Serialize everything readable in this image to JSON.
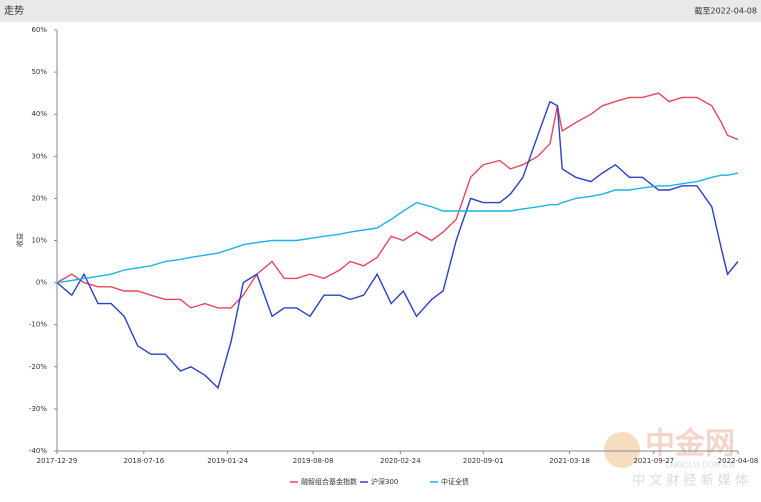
{
  "header": {
    "title": "走势",
    "asof": "截至2022-04-08"
  },
  "watermark": {
    "logo": "中金网",
    "tagline": "中 文 财 经 新 媒 体",
    "site": "CNGOLD.COM.CN"
  },
  "chart_data": {
    "type": "line",
    "y_label": "收益",
    "x": [
      "2017-12-29",
      "2018-02-01",
      "2018-03-01",
      "2018-04-02",
      "2018-05-02",
      "2018-06-01",
      "2018-07-02",
      "2018-08-01",
      "2018-09-03",
      "2018-10-08",
      "2018-11-01",
      "2018-12-03",
      "2019-01-02",
      "2019-02-01",
      "2019-03-01",
      "2019-04-01",
      "2019-05-06",
      "2019-06-03",
      "2019-07-01",
      "2019-08-01",
      "2019-09-02",
      "2019-10-08",
      "2019-11-01",
      "2019-12-02",
      "2020-01-02",
      "2020-02-03",
      "2020-03-02",
      "2020-04-01",
      "2020-05-06",
      "2020-06-01",
      "2020-07-01",
      "2020-08-03",
      "2020-09-01",
      "2020-10-09",
      "2020-11-02",
      "2020-12-01",
      "2021-01-04",
      "2021-02-01",
      "2021-02-18",
      "2021-03-01",
      "2021-04-01",
      "2021-05-06",
      "2021-06-01",
      "2021-07-01",
      "2021-08-02",
      "2021-09-01",
      "2021-10-08",
      "2021-11-01",
      "2021-12-01",
      "2022-01-04",
      "2022-02-07",
      "2022-03-01",
      "2022-03-15",
      "2022-04-08"
    ],
    "series": [
      {
        "name": "融智组合基金指数",
        "color": "#e8475a",
        "values": [
          0,
          2,
          0,
          -1,
          -1,
          -2,
          -2,
          -3,
          -4,
          -4,
          -6,
          -5,
          -6,
          -6,
          -3,
          2,
          5,
          1,
          1,
          2,
          1,
          3,
          5,
          4,
          6,
          11,
          10,
          12,
          10,
          12,
          15,
          25,
          28,
          29,
          27,
          28,
          30,
          33,
          42,
          36,
          38,
          40,
          42,
          43,
          44,
          44,
          45,
          43,
          44,
          44,
          42,
          38,
          35,
          34
        ]
      },
      {
        "name": "沪深300",
        "color": "#2c3fc8",
        "values": [
          0,
          -3,
          2,
          -5,
          -5,
          -8,
          -15,
          -17,
          -17,
          -21,
          -20,
          -22,
          -25,
          -14,
          0,
          2,
          -8,
          -6,
          -6,
          -8,
          -3,
          -3,
          -4,
          -3,
          2,
          -5,
          -2,
          -8,
          -4,
          -2,
          10,
          20,
          19,
          19,
          21,
          25,
          35,
          43,
          42,
          27,
          25,
          24,
          26,
          28,
          25,
          25,
          22,
          22,
          23,
          23,
          18,
          8,
          2,
          5
        ]
      },
      {
        "name": "中证全债",
        "color": "#1ab4e6",
        "values": [
          0,
          0.5,
          1,
          1.5,
          2,
          3,
          3.5,
          4,
          5,
          5.5,
          6,
          6.5,
          7,
          8,
          9,
          9.5,
          10,
          10,
          10,
          10.5,
          11,
          11.5,
          12,
          12.5,
          13,
          15,
          17,
          19,
          18,
          17,
          17,
          17,
          17,
          17,
          17,
          17.5,
          18,
          18.5,
          18.5,
          19,
          20,
          20.5,
          21,
          22,
          22,
          22.5,
          23,
          23,
          23.5,
          24,
          25,
          25.5,
          25.5,
          26
        ]
      }
    ],
    "xlim": [
      "2017-12-29",
      "2022-04-08"
    ],
    "xticks": [
      "2017-12-29",
      "2018-07-16",
      "2019-01-24",
      "2019-08-08",
      "2020-02-24",
      "2020-09-01",
      "2021-03-18",
      "2021-09-27",
      "2022-04-08"
    ],
    "ylim": [
      -40,
      60
    ],
    "yticks": [
      {
        "value": -40,
        "label": "-40%"
      },
      {
        "value": -30,
        "label": "-30%"
      },
      {
        "value": -20,
        "label": "-20%"
      },
      {
        "value": -10,
        "label": "-10%"
      },
      {
        "value": 0,
        "label": "0%"
      },
      {
        "value": 10,
        "label": "10%"
      },
      {
        "value": 20,
        "label": "20%"
      },
      {
        "value": 30,
        "label": "30%"
      },
      {
        "value": 40,
        "label": "40%"
      },
      {
        "value": 50,
        "label": "50%"
      },
      {
        "value": 60,
        "label": "60%"
      }
    ]
  }
}
